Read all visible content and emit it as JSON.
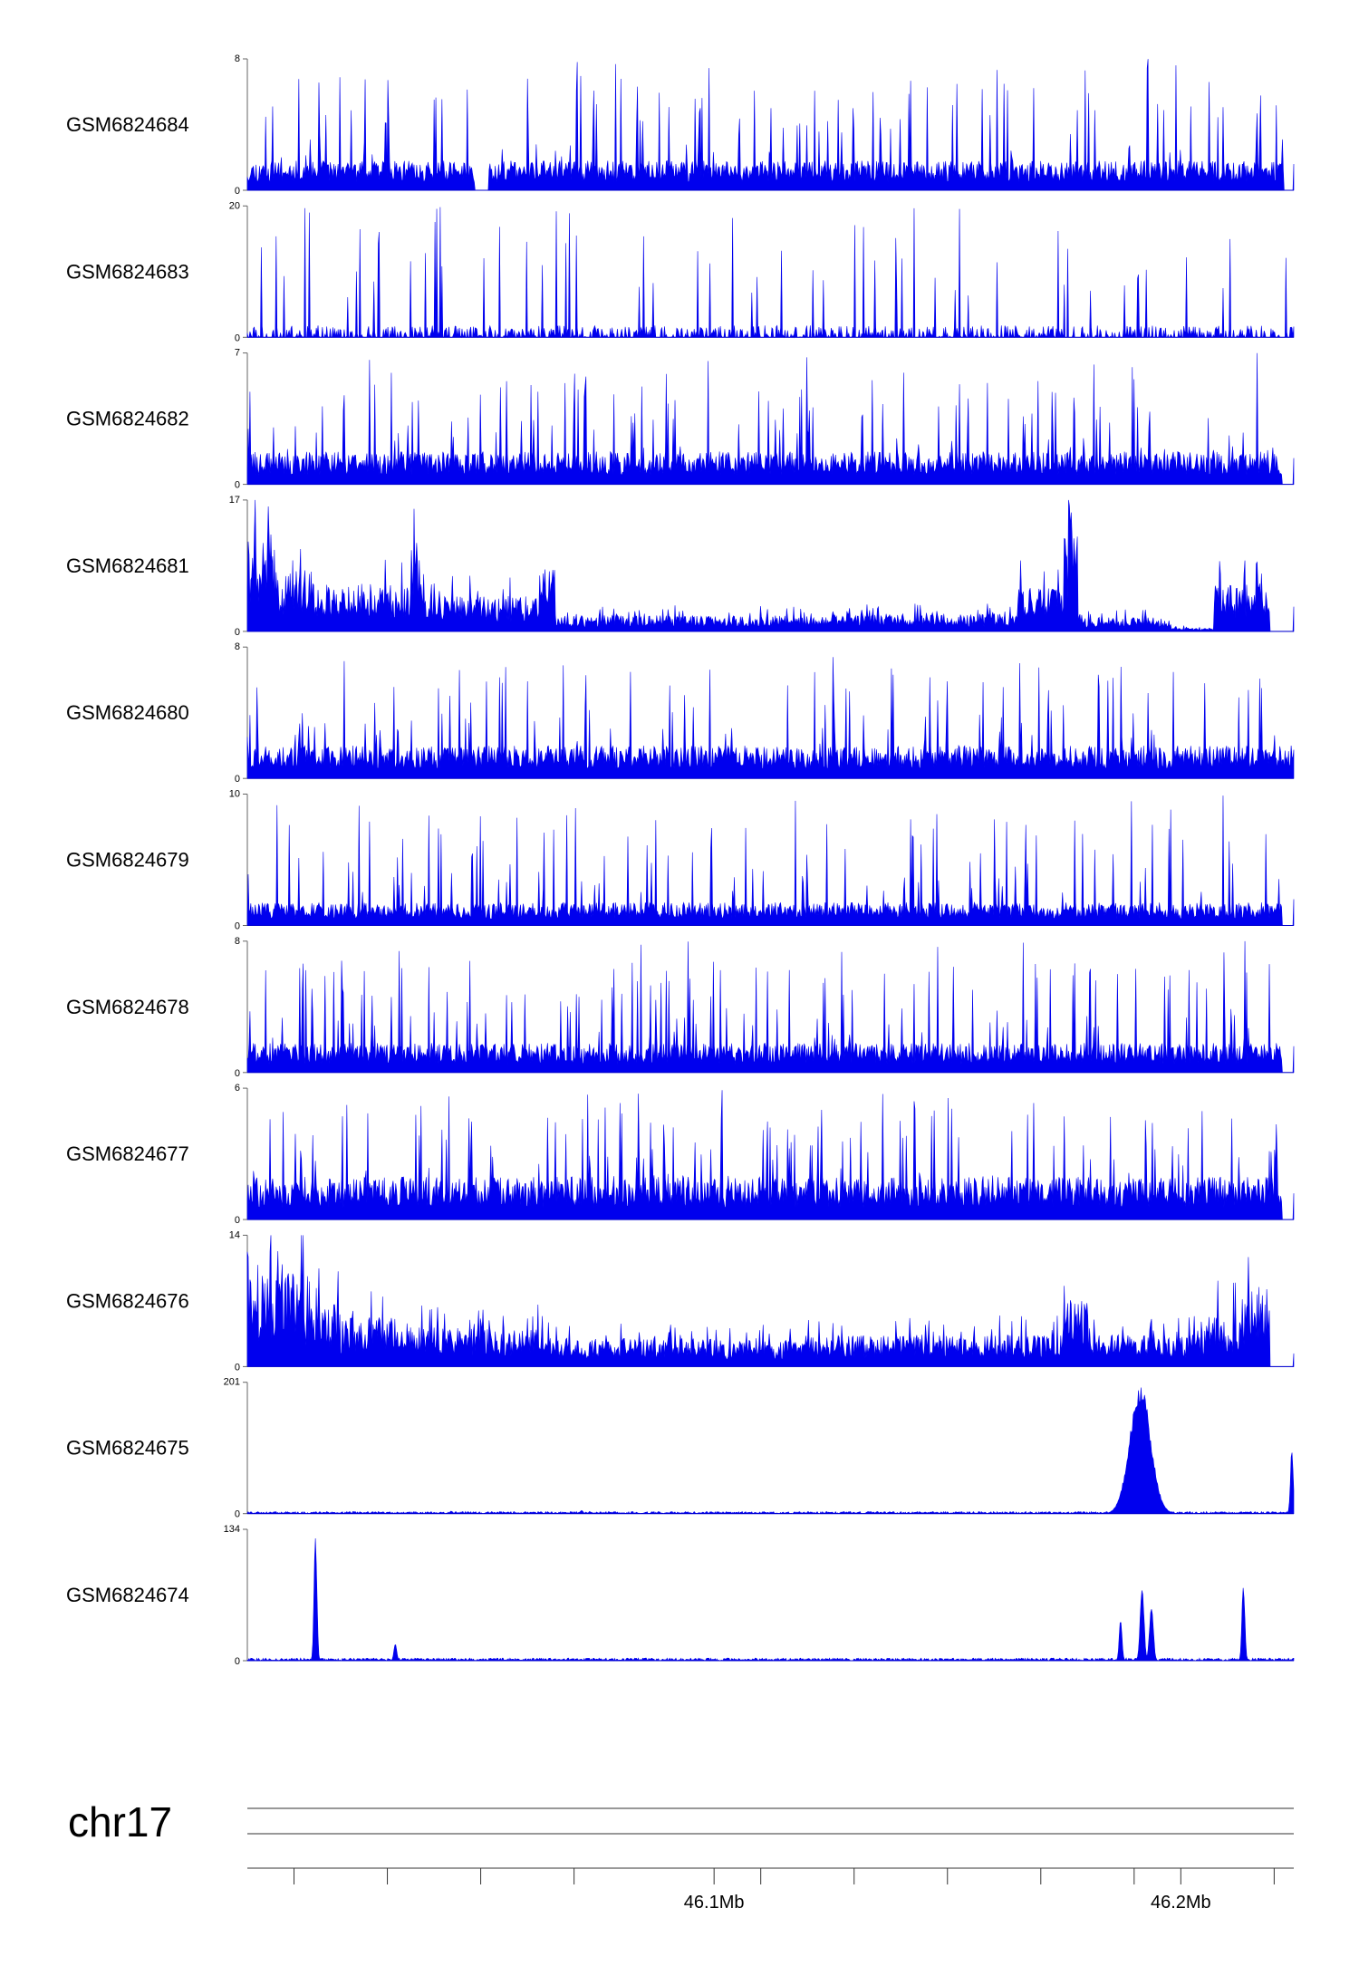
{
  "chart_data": {
    "type": "area",
    "tracks": [
      {
        "name": "GSM6824684",
        "ymin": 0,
        "ymax": 8,
        "profile": "noisy",
        "seed": 11,
        "base": 0.18,
        "spike_rate": 0.08,
        "gaps": [
          [
            46.0487,
            46.0517
          ],
          [
            46.2221,
            46.2242
          ]
        ],
        "color": "#0000ee"
      },
      {
        "name": "GSM6824683",
        "ymin": 0,
        "ymax": 20,
        "profile": "sparse",
        "seed": 23,
        "base": 0.06,
        "spike_rate": 0.05,
        "color": "#0000ee"
      },
      {
        "name": "GSM6824682",
        "ymin": 0,
        "ymax": 7,
        "profile": "noisy",
        "seed": 37,
        "base": 0.2,
        "spike_rate": 0.08,
        "gaps": [
          [
            46.2216,
            46.2242
          ]
        ],
        "color": "#0000ee"
      },
      {
        "name": "GSM6824681",
        "ymin": 0,
        "ymax": 17,
        "profile": "dense",
        "seed": 41,
        "base": 0.2,
        "color": "#0000ee",
        "regions": [
          [
            46.0,
            46.006,
            0.55
          ],
          [
            46.006,
            46.014,
            0.35
          ],
          [
            46.014,
            46.035,
            0.27
          ],
          [
            46.035,
            46.038,
            0.5
          ],
          [
            46.038,
            46.063,
            0.2
          ],
          [
            46.063,
            46.066,
            0.35
          ],
          [
            46.066,
            46.125,
            0.09
          ],
          [
            46.125,
            46.165,
            0.1
          ],
          [
            46.165,
            46.175,
            0.25
          ],
          [
            46.175,
            46.178,
            0.55
          ],
          [
            46.178,
            46.198,
            0.08
          ],
          [
            46.198,
            46.207,
            0.02
          ],
          [
            46.207,
            46.219,
            0.27
          ],
          [
            46.219,
            46.2242,
            0.0
          ]
        ]
      },
      {
        "name": "GSM6824680",
        "ymin": 0,
        "ymax": 8,
        "profile": "noisy",
        "seed": 53,
        "base": 0.2,
        "spike_rate": 0.09,
        "color": "#0000ee"
      },
      {
        "name": "GSM6824679",
        "ymin": 0,
        "ymax": 10,
        "profile": "noisy",
        "seed": 61,
        "base": 0.14,
        "spike_rate": 0.08,
        "gaps": [
          [
            46.2216,
            46.2242
          ]
        ],
        "color": "#0000ee"
      },
      {
        "name": "GSM6824678",
        "ymin": 0,
        "ymax": 8,
        "profile": "noisy",
        "seed": 71,
        "base": 0.18,
        "spike_rate": 0.09,
        "gaps": [
          [
            46.2216,
            46.2242
          ]
        ],
        "color": "#0000ee"
      },
      {
        "name": "GSM6824677",
        "ymin": 0,
        "ymax": 6,
        "profile": "noisy",
        "seed": 83,
        "base": 0.26,
        "spike_rate": 0.1,
        "gaps": [
          [
            46.2216,
            46.2242
          ]
        ],
        "color": "#0000ee"
      },
      {
        "name": "GSM6824676",
        "ymin": 0,
        "ymax": 14,
        "profile": "dense",
        "seed": 97,
        "base": 0.2,
        "color": "#0000ee",
        "regions": [
          [
            46.0,
            46.012,
            0.55
          ],
          [
            46.012,
            46.02,
            0.35
          ],
          [
            46.02,
            46.035,
            0.28
          ],
          [
            46.035,
            46.064,
            0.22
          ],
          [
            46.064,
            46.1,
            0.16
          ],
          [
            46.1,
            46.12,
            0.15
          ],
          [
            46.12,
            46.175,
            0.18
          ],
          [
            46.175,
            46.18,
            0.4
          ],
          [
            46.18,
            46.205,
            0.18
          ],
          [
            46.205,
            46.213,
            0.3
          ],
          [
            46.213,
            46.219,
            0.45
          ],
          [
            46.219,
            46.2242,
            0.0
          ]
        ]
      },
      {
        "name": "GSM6824675",
        "ymin": 0,
        "ymax": 201,
        "profile": "peaks",
        "seed": 101,
        "base": 0.008,
        "color": "#0000ee",
        "peaks": [
          {
            "x": 46.1913,
            "h": 201,
            "w": 0.0022
          },
          {
            "x": 46.0437,
            "h": 4,
            "w": 0.0003
          },
          {
            "x": 46.0716,
            "h": 5,
            "w": 0.0003
          },
          {
            "x": 46.1276,
            "h": 3,
            "w": 0.0003
          },
          {
            "x": 46.2238,
            "h": 100,
            "w": 0.0003
          }
        ]
      },
      {
        "name": "GSM6824674",
        "ymin": 0,
        "ymax": 134,
        "profile": "peaks",
        "seed": 113,
        "base": 0.01,
        "color": "#0000ee",
        "peaks": [
          {
            "x": 46.0146,
            "h": 134,
            "w": 0.0003
          },
          {
            "x": 46.0317,
            "h": 18,
            "w": 0.0003
          },
          {
            "x": 46.1871,
            "h": 42,
            "w": 0.0003
          },
          {
            "x": 46.1917,
            "h": 82,
            "w": 0.0004
          },
          {
            "x": 46.1937,
            "h": 60,
            "w": 0.0004
          },
          {
            "x": 46.2134,
            "h": 82,
            "w": 0.0003
          }
        ]
      }
    ],
    "chromosome": "chr17",
    "x_range": [
      46.0,
      46.2242
    ],
    "x_unit": "Mb",
    "x_tick_labels": [
      {
        "x": 46.1,
        "label": "46.1Mb"
      },
      {
        "x": 46.2,
        "label": "46.2Mb"
      }
    ],
    "x_minor_ticks": [
      46.01,
      46.03,
      46.05,
      46.07,
      46.1,
      46.11,
      46.13,
      46.15,
      46.17,
      46.19,
      46.2,
      46.22
    ],
    "grid": false,
    "legend": "none"
  }
}
